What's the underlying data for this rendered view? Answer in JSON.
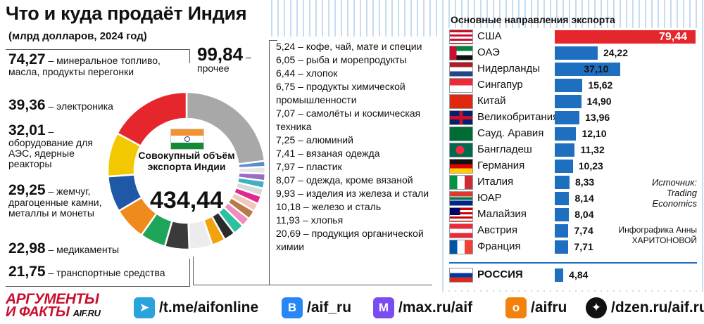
{
  "title": "Что и куда продаёт Индия",
  "subtitle": "(млрд долларов, 2024 год)",
  "chart_data": [
    {
      "type": "pie",
      "title": "Что и куда продаёт Индия",
      "subtitle": "(млрд долларов, 2024 год)",
      "center_label": "Совокупный объём экспорта Индии",
      "center_value": "434,44",
      "segments": [
        {
          "label": "прочее",
          "value": 99.84,
          "display": "99,84",
          "color": "#a8a8a8"
        },
        {
          "label": "кофе, чай, мате и специи",
          "value": 5.24,
          "display": "5,24",
          "color": "#5b8bd0"
        },
        {
          "label": "рыба и морепродукты",
          "value": 6.05,
          "display": "6,05",
          "color": "#e6e6e6"
        },
        {
          "label": "хлопок",
          "value": 6.44,
          "display": "6,44",
          "color": "#9c6bc4"
        },
        {
          "label": "продукты химической промышленности",
          "value": 6.75,
          "display": "6,75",
          "color": "#3fb0c4"
        },
        {
          "label": "самолёты и космическая техника",
          "value": 7.07,
          "display": "7,07",
          "color": "#d9d9d9"
        },
        {
          "label": "алюминий",
          "value": 7.25,
          "display": "7,25",
          "color": "#e02891"
        },
        {
          "label": "вязаная одежда",
          "value": 7.41,
          "display": "7,41",
          "color": "#f2c8b8"
        },
        {
          "label": "пластик",
          "value": 7.97,
          "display": "7,97",
          "color": "#b97a4a"
        },
        {
          "label": "одежда, кроме вязаной",
          "value": 8.07,
          "display": "8,07",
          "color": "#f08cc0"
        },
        {
          "label": "изделия из железа и стали",
          "value": 9.93,
          "display": "9,93",
          "color": "#2fc0a0"
        },
        {
          "label": "железо и сталь",
          "value": 10.18,
          "display": "10,18",
          "color": "#2b2b2b"
        },
        {
          "label": "хлопья",
          "value": 11.93,
          "display": "11,93",
          "color": "#f2a20c"
        },
        {
          "label": "продукция органической химии",
          "value": 20.69,
          "display": "20,69",
          "color": "#ececec"
        },
        {
          "label": "транспортные средства",
          "value": 21.75,
          "display": "21,75",
          "color": "#3a3a3a"
        },
        {
          "label": "медикаменты",
          "value": 22.98,
          "display": "22,98",
          "color": "#1fa55a"
        },
        {
          "label": "жемчуг, драгоценные камни, металлы и монеты",
          "value": 29.25,
          "display": "29,25",
          "color": "#f08a1c"
        },
        {
          "label": "оборудование для АЭС, ядерные реакторы",
          "value": 32.01,
          "display": "32,01",
          "color": "#2058a8"
        },
        {
          "label": "электроника",
          "value": 39.36,
          "display": "39,36",
          "color": "#f2c800"
        },
        {
          "label": "минеральное топливо, масла, продукты перегонки",
          "value": 74.27,
          "display": "74,27",
          "color": "#e5262c"
        }
      ]
    },
    {
      "type": "bar",
      "orientation": "horizontal",
      "title": "Основные направления экспорта",
      "categories": [
        "США",
        "ОАЭ",
        "Нидерланды",
        "Сингапур",
        "Китай",
        "Великобритания",
        "Сауд. Аравия",
        "Бангладеш",
        "Германия",
        "Италия",
        "ЮАР",
        "Малайзия",
        "Австрия",
        "Франция",
        "РОССИЯ"
      ],
      "values": [
        79.44,
        24.22,
        37.1,
        15.62,
        14.9,
        13.96,
        12.1,
        11.32,
        10.23,
        8.33,
        8.14,
        8.04,
        7.74,
        7.71,
        4.84
      ],
      "labels": [
        "79,44",
        "24,22",
        "37,10",
        "15,62",
        "14,90",
        "13,96",
        "12,10",
        "11,32",
        "10,23",
        "8,33",
        "8,14",
        "8,04",
        "7,74",
        "7,71",
        "4,84"
      ],
      "bar_color": "#1f6fc0",
      "highlight_color": "#e5262c"
    }
  ],
  "big_labels": {
    "fuel": {
      "value": "74,27",
      "text": "минеральное топливо, масла, продукты перегонки"
    },
    "electronics": {
      "value": "39,36",
      "text": "электроника"
    },
    "nuclear": {
      "value": "32,01",
      "text": "оборудование для АЭС, ядерные реакторы"
    },
    "pearls": {
      "value": "29,25",
      "text": "жемчуг, драгоценные камни, металлы и монеты"
    },
    "meds": {
      "value": "22,98",
      "text": "медикаменты"
    },
    "transport": {
      "value": "21,75",
      "text": "транспортные средства"
    },
    "other": {
      "value": "99,84",
      "text": "прочее"
    }
  },
  "source": "Источник: Trading Economics",
  "credit": "Инфографика Анны ХАРИТОНОВОЙ",
  "footer": {
    "brand_line1": "АРГУМЕНТЫ",
    "brand_line2": "И ФАКТЫ",
    "brand_domain": "AIF.RU",
    "links": [
      {
        "icon": "telegram-icon",
        "text": "/t.me/aifonline",
        "color": "#2aa3dd"
      },
      {
        "icon": "vk-icon",
        "text": "/aif_ru",
        "color": "#2787f5"
      },
      {
        "icon": "max-icon",
        "text": "/max.ru/aif",
        "color": "#7a4df0"
      },
      {
        "icon": "odnoklassniki-icon",
        "text": "/aifru",
        "color": "#f2820c"
      },
      {
        "icon": "dzen-icon",
        "text": "/dzen.ru/aif.ru",
        "color": "#111111"
      }
    ]
  }
}
